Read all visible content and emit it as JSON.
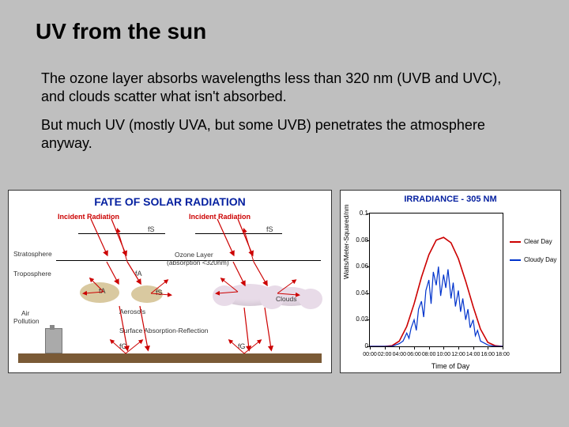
{
  "title": "UV from the sun",
  "paragraph1": "The ozone layer absorbs wavelengths less than 320 nm (UVB and UVC), and clouds scatter what isn't absorbed.",
  "paragraph2": "But much UV (mostly UVA, but some UVB) penetrates the atmosphere anyway.",
  "left_diagram": {
    "title": "FATE OF SOLAR RADIATION",
    "incident_label": "Incident  Radiation",
    "stratosphere": "Stratosphere",
    "ozone_layer": "Ozone Layer",
    "ozone_note": "(absorption <320nm)",
    "troposphere": "Troposphere",
    "aerosols": "Aerosols",
    "clouds": "Clouds",
    "air_pollution": "Air",
    "air_pollution_2": "Pollution",
    "surface": "Surface Absorption-Reflection",
    "fs": "fS",
    "fa": "fA",
    "fg": "fG",
    "arrow_color": "#cc0000",
    "title_color": "#0621a0",
    "ground_color": "#7a5a36",
    "cloud_color": "#e8dbe8",
    "aerosol_color": "#d9c9a0"
  },
  "right_chart": {
    "title": "IRRADIANCE - 305 NM",
    "ylabel": "Watts/Meter-Squared/nm",
    "xlabel": "Time of Day",
    "ylim": [
      0,
      0.1
    ],
    "yticks": [
      0,
      0.02,
      0.04,
      0.06,
      0.08,
      0.1
    ],
    "ytick_labels": [
      "0",
      "0.02",
      "0.04",
      "0.06",
      "0.08",
      "0.1"
    ],
    "xticks": [
      "00:00",
      "02:00",
      "04:00",
      "06:00",
      "08:00",
      "10:00",
      "12:00",
      "14:00",
      "16:00",
      "18:00"
    ],
    "legend": [
      {
        "label": "Clear Day",
        "color": "#cc0000"
      },
      {
        "label": "Cloudy Day",
        "color": "#0033cc"
      }
    ],
    "clear_day_color": "#cc0000",
    "cloudy_day_color": "#0033cc",
    "clear_day": [
      [
        0,
        0.0
      ],
      [
        1,
        0.0
      ],
      [
        2,
        0.0
      ],
      [
        3,
        0.0005
      ],
      [
        4,
        0.004
      ],
      [
        5,
        0.015
      ],
      [
        6,
        0.032
      ],
      [
        7,
        0.052
      ],
      [
        8,
        0.069
      ],
      [
        9,
        0.08
      ],
      [
        10,
        0.082
      ],
      [
        11,
        0.078
      ],
      [
        12,
        0.066
      ],
      [
        13,
        0.049
      ],
      [
        14,
        0.03
      ],
      [
        15,
        0.013
      ],
      [
        16,
        0.003
      ],
      [
        17,
        0.0005
      ],
      [
        18,
        0.0
      ]
    ],
    "cloudy_day": [
      [
        0,
        0.0
      ],
      [
        1,
        0.0
      ],
      [
        2,
        0.0
      ],
      [
        3,
        0.0
      ],
      [
        4,
        0.002
      ],
      [
        4.5,
        0.004
      ],
      [
        5,
        0.01
      ],
      [
        5.3,
        0.006
      ],
      [
        5.6,
        0.014
      ],
      [
        6,
        0.02
      ],
      [
        6.3,
        0.012
      ],
      [
        6.6,
        0.028
      ],
      [
        7,
        0.034
      ],
      [
        7.3,
        0.022
      ],
      [
        7.6,
        0.042
      ],
      [
        8,
        0.05
      ],
      [
        8.3,
        0.032
      ],
      [
        8.6,
        0.056
      ],
      [
        9,
        0.046
      ],
      [
        9.3,
        0.06
      ],
      [
        9.6,
        0.038
      ],
      [
        10,
        0.054
      ],
      [
        10.3,
        0.044
      ],
      [
        10.6,
        0.058
      ],
      [
        11,
        0.036
      ],
      [
        11.3,
        0.048
      ],
      [
        11.6,
        0.03
      ],
      [
        12,
        0.042
      ],
      [
        12.3,
        0.026
      ],
      [
        12.6,
        0.036
      ],
      [
        13,
        0.02
      ],
      [
        13.3,
        0.028
      ],
      [
        13.6,
        0.014
      ],
      [
        14,
        0.02
      ],
      [
        14.3,
        0.008
      ],
      [
        14.6,
        0.012
      ],
      [
        15,
        0.004
      ],
      [
        16,
        0.001
      ],
      [
        17,
        0.0
      ],
      [
        18,
        0.0
      ]
    ]
  }
}
